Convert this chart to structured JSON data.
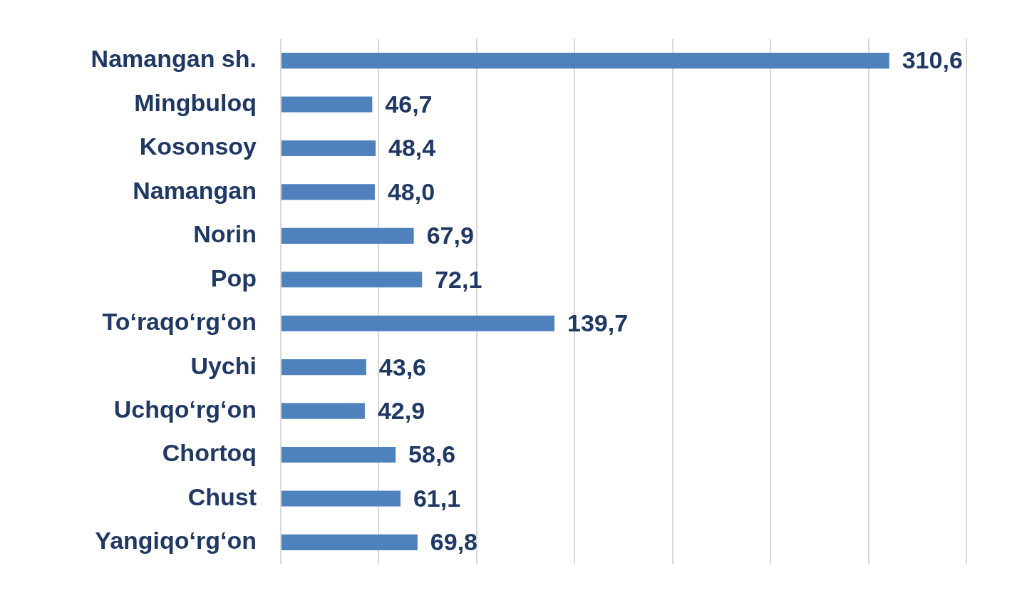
{
  "chart_data": {
    "type": "bar",
    "orientation": "horizontal",
    "categories": [
      "Namangan sh.",
      "Mingbuloq",
      "Kosonsoy",
      "Namangan",
      "Norin",
      "Pop",
      "To‘raqo‘rg‘on",
      "Uychi",
      "Uchqo‘rg‘on",
      "Chortoq",
      "Chust",
      "Yangiqo‘rg‘on"
    ],
    "values": [
      310.6,
      46.7,
      48.4,
      48.0,
      67.9,
      72.1,
      139.7,
      43.6,
      42.9,
      58.6,
      61.1,
      69.8
    ],
    "value_labels": [
      "310,6",
      "46,7",
      "48,4",
      "48,0",
      "67,9",
      "72,1",
      "139,7",
      "43,6",
      "42,9",
      "58,6",
      "61,1",
      "69,8"
    ],
    "color": "#4f81bd",
    "xlim": [
      0,
      350
    ],
    "xticks": [
      {
        "value": 0,
        "label": null
      },
      {
        "value": 50,
        "label": null
      },
      {
        "value": 100,
        "label": null
      },
      {
        "value": 150,
        "label": null
      },
      {
        "value": 200,
        "label": null
      },
      {
        "value": 250,
        "label": null
      },
      {
        "value": 300,
        "label": null
      },
      {
        "value": 350,
        "label": null
      }
    ],
    "grid": "x",
    "tick_labels": "y",
    "legend": false
  }
}
